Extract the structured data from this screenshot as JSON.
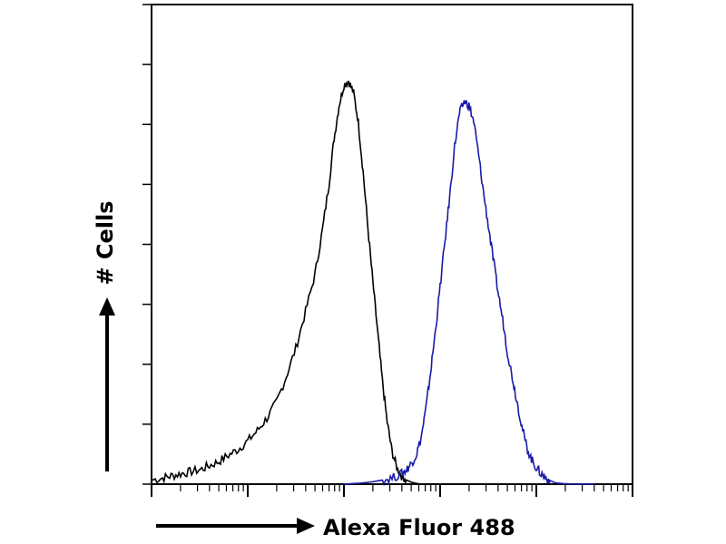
{
  "chart_data": {
    "type": "line",
    "title": "",
    "xlabel": "Alexa Fluor 488",
    "ylabel": "# Cells",
    "x_scale": "log",
    "xlim": [
      1,
      100000
    ],
    "ylim": [
      0,
      100
    ],
    "grid": false,
    "legend": "none",
    "series": [
      {
        "color": "#000000",
        "x": [
          1,
          1.3,
          1.6,
          2,
          2.5,
          3.2,
          4,
          5,
          6.3,
          8,
          10,
          12.6,
          15.8,
          20,
          25,
          31.6,
          40,
          50,
          60,
          70,
          79,
          89,
          100,
          112,
          126,
          141,
          158,
          178,
          200,
          224,
          251,
          282,
          316,
          355,
          398,
          447,
          501,
          562,
          631,
          708,
          794,
          1000
        ],
        "y": [
          1,
          1.5,
          2,
          2.5,
          3,
          3.5,
          4.5,
          5.5,
          7,
          8.5,
          10.5,
          13,
          16,
          20,
          26,
          33,
          42,
          51,
          62,
          73,
          84,
          92,
          97,
          98,
          95,
          88,
          76,
          62,
          49,
          37,
          25,
          15,
          8,
          4,
          2,
          1,
          0.5,
          0.2,
          0,
          0,
          0,
          0
        ]
      },
      {
        "color": "#1a1aa6",
        "x": [
          100,
          158,
          200,
          251,
          316,
          398,
          447,
          501,
          562,
          631,
          708,
          794,
          891,
          1000,
          1122,
          1259,
          1413,
          1585,
          1778,
          1995,
          2239,
          2512,
          2818,
          3162,
          3548,
          3981,
          4467,
          5012,
          5623,
          6310,
          7079,
          7943,
          8913,
          10000,
          11220,
          12589,
          14125,
          15849,
          20000,
          25119,
          31623,
          39811
        ],
        "y": [
          0,
          0.3,
          0.6,
          1,
          1.5,
          2.5,
          3.5,
          5,
          7,
          11,
          18,
          27,
          37,
          48,
          59,
          70,
          82,
          90,
          93,
          92,
          88,
          80,
          71,
          63,
          55,
          47,
          40,
          32,
          26,
          20,
          14,
          9,
          6,
          4,
          2.5,
          1.5,
          0.8,
          0.3,
          0.1,
          0,
          0,
          0
        ]
      }
    ]
  }
}
